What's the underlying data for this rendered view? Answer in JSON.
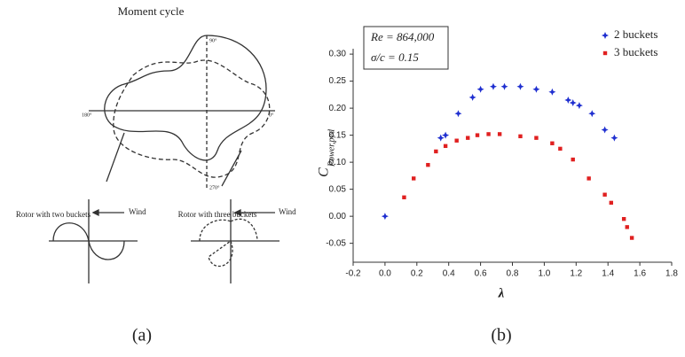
{
  "diagram": {
    "title": "Moment cycle",
    "rotor_two": "Rotor with two buckets",
    "rotor_three": "Rotor with three buckets",
    "wind_left": "Wind",
    "wind_right": "Wind",
    "angles": [
      "90°",
      "0°",
      "180°",
      "270°"
    ]
  },
  "captions": [
    "(a)",
    "(b)"
  ],
  "chart_data": {
    "type": "scatter",
    "xlabel": "λ",
    "ylabel": "C",
    "ylabel_sub": "Power,ped",
    "annotations": [
      "Re = 864,000",
      "σ/c = 0.15"
    ],
    "xlim": [
      -0.2,
      1.8
    ],
    "xticks": [
      -0.2,
      {
        "value": 0,
        "label": "0.0"
      },
      0.2,
      0.4,
      0.6,
      0.8,
      {
        "value": 1,
        "label": "1.0"
      },
      1.2,
      1.4,
      1.6,
      1.8
    ],
    "ylim": [
      -0.085,
      0.31
    ],
    "yticks": [
      -0.05,
      {
        "value": 0,
        "label": "0.00"
      },
      0.05,
      {
        "value": 0.1,
        "label": "0.10"
      },
      0.15,
      {
        "value": 0.2,
        "label": "0.20"
      },
      0.25,
      {
        "value": 0.3,
        "label": "0.30"
      }
    ],
    "grid": false,
    "legend": "top-right",
    "series": [
      {
        "name": "2 buckets",
        "color": "#1f2fd0",
        "marker": "star",
        "x": [
          0.0,
          0.35,
          0.38,
          0.46,
          0.55,
          0.6,
          0.68,
          0.75,
          0.85,
          0.95,
          1.05,
          1.15,
          1.18,
          1.22,
          1.3,
          1.38,
          1.44
        ],
        "values": [
          0.0,
          0.145,
          0.15,
          0.19,
          0.22,
          0.235,
          0.24,
          0.24,
          0.24,
          0.235,
          0.23,
          0.215,
          0.21,
          0.205,
          0.19,
          0.16,
          0.145
        ]
      },
      {
        "name": "3 buckets",
        "color": "#e02020",
        "marker": "square",
        "x": [
          0.12,
          0.18,
          0.27,
          0.32,
          0.38,
          0.45,
          0.52,
          0.58,
          0.65,
          0.72,
          0.85,
          0.95,
          1.05,
          1.1,
          1.18,
          1.28,
          1.38,
          1.42,
          1.5,
          1.52,
          1.55
        ],
        "values": [
          0.035,
          0.07,
          0.095,
          0.12,
          0.13,
          0.14,
          0.145,
          0.15,
          0.152,
          0.152,
          0.148,
          0.145,
          0.135,
          0.125,
          0.105,
          0.07,
          0.04,
          0.025,
          -0.005,
          -0.02,
          -0.04
        ]
      }
    ]
  }
}
